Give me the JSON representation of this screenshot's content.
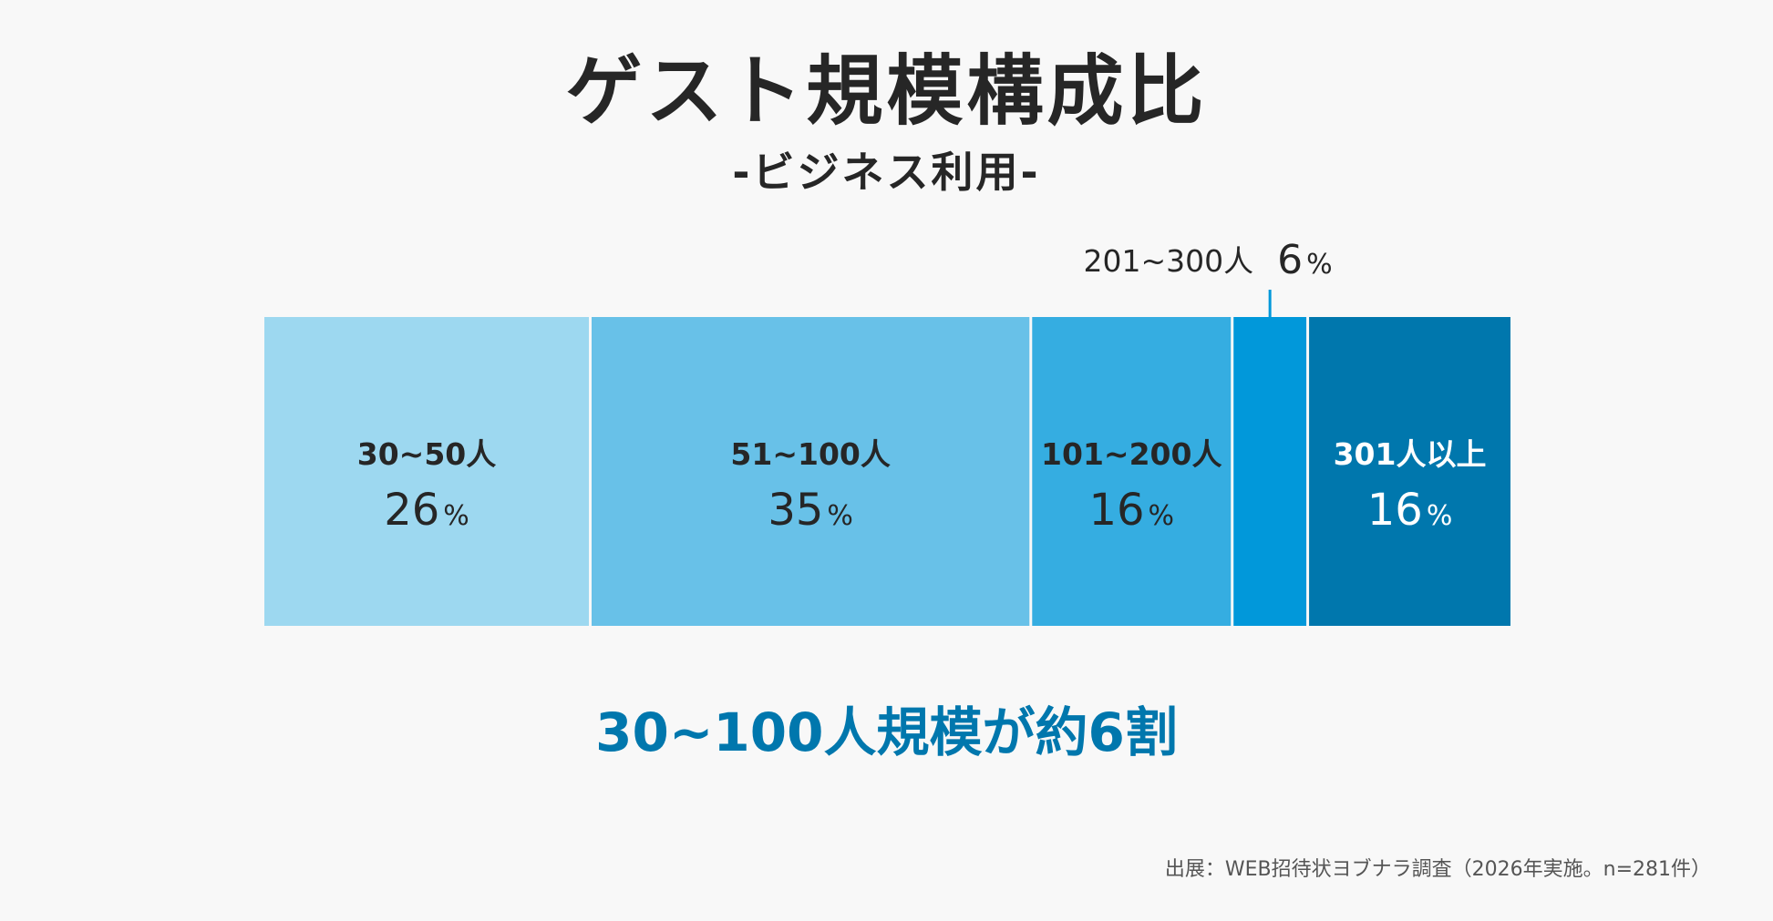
{
  "chart_data": {
    "type": "bar",
    "subtype": "100% stacked horizontal",
    "title": "ゲスト規模構成比",
    "subtitle": "-ビジネス利用-",
    "unit": "%",
    "segments": [
      {
        "label": "30~50人",
        "value": 26,
        "color": "#9dd8f0",
        "text_color": "#262626",
        "label_position": "inside"
      },
      {
        "label": "51~100人",
        "value": 35,
        "color": "#68c1e8",
        "text_color": "#262626",
        "label_position": "inside"
      },
      {
        "label": "101~200人",
        "value": 16,
        "color": "#35ade1",
        "text_color": "#262626",
        "label_position": "inside"
      },
      {
        "label": "201~300人",
        "value": 6,
        "color": "#0198da",
        "text_color": "#262626",
        "label_position": "above"
      },
      {
        "label": "301人以上",
        "value": 16,
        "color": "#0077ad",
        "text_color": "#ffffff",
        "label_position": "inside"
      }
    ],
    "callout_color": "#0198da",
    "headline": "30~100人規模が約6割",
    "headline_color": "#0077ad",
    "source": "出展：WEB招待状ヨブナラ調査（2026年実施。n=281件）"
  }
}
